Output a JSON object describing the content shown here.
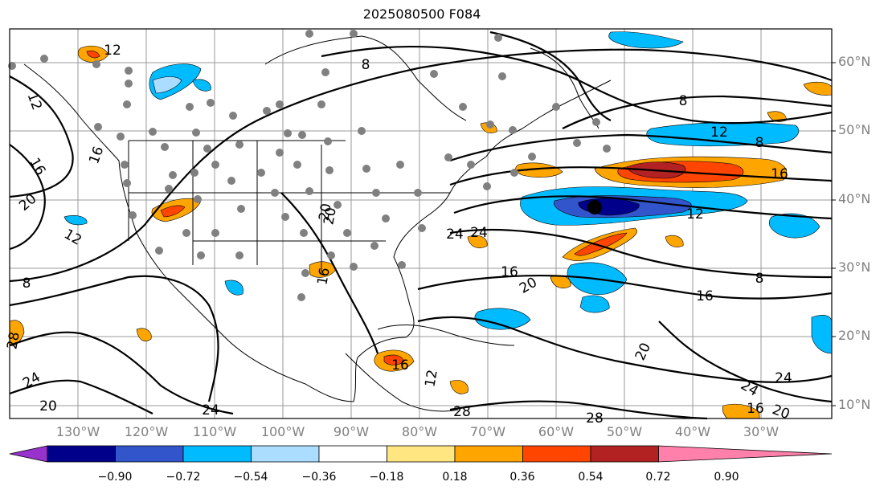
{
  "title": "2025080500 F084",
  "latitude_labels": [
    "60°N",
    "50°N",
    "40°N",
    "30°N",
    "20°N",
    "10°N"
  ],
  "longitude_labels": [
    "130°W",
    "120°W",
    "110°W",
    "100°W",
    "90°W",
    "80°W",
    "70°W",
    "60°W",
    "50°W",
    "40°W",
    "30°W"
  ],
  "colorbar": {
    "tick_labels": [
      "−0.90",
      "−0.72",
      "−0.54",
      "−0.36",
      "−0.18",
      "0.18",
      "0.36",
      "0.54",
      "0.72",
      "0.90"
    ],
    "colors": [
      "#9932cc",
      "#00008b",
      "#3355cc",
      "#00bbff",
      "#aaddff",
      "#ffffff",
      "#ffe680",
      "#ffa500",
      "#ff4500",
      "#b22222",
      "#ff80aa"
    ]
  },
  "contour_labels": [
    "12",
    "8",
    "12",
    "16",
    "20",
    "12",
    "8",
    "16",
    "20",
    "24",
    "16",
    "20",
    "8",
    "16",
    "12",
    "8",
    "16",
    "24",
    "20",
    "16",
    "20",
    "24",
    "28",
    "24",
    "20",
    "24",
    "16",
    "12",
    "28",
    "28",
    "20",
    "24",
    "16",
    "12",
    "8"
  ],
  "colors": {
    "orange": "#ffa500",
    "red": "#ff4500",
    "darkred": "#b22222",
    "blue": "#00bbff",
    "lightblue": "#aaddff",
    "darkblue": "#3355cc",
    "navy": "#00008b",
    "yellow": "#ffe680"
  }
}
